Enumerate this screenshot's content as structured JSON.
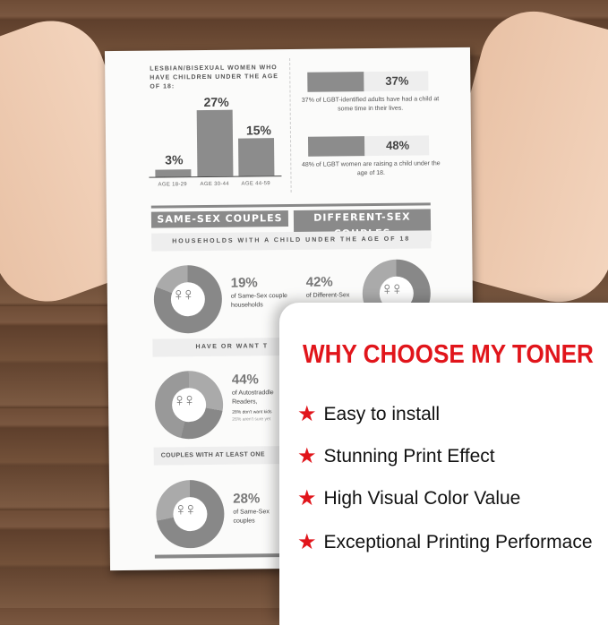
{
  "paper": {
    "bar_title": "LESBIAN/BISEXUAL WOMEN WHO HAVE CHILDREN UNDER THE AGE OF 18:",
    "bars": [
      {
        "label": "AGE 18-29",
        "value": "3%",
        "pct": 3
      },
      {
        "label": "AGE 30-44",
        "value": "27%",
        "pct": 27
      },
      {
        "label": "AGE 44-59",
        "value": "15%",
        "pct": 15
      }
    ],
    "hbars": [
      {
        "value": "37%",
        "pct": 37,
        "caption": "37% of LGBT-identified adults have had a child at some time in their lives."
      },
      {
        "value": "48%",
        "pct": 48,
        "caption": "48% of LGBT women are raising a child under the age of 18."
      }
    ],
    "same_sex": "SAME-SEX COUPLES",
    "different_sex": "DIFFERENT-SEX COUPLES",
    "band1": "HOUSEHOLDS WITH A CHILD UNDER THE AGE OF 18",
    "band2": "HAVE OR WANT T",
    "band3": "COUPLES WITH AT LEAST ONE",
    "stats": [
      {
        "value": "19%",
        "text": "of Same-Sex couple households"
      },
      {
        "value": "42%",
        "text": "of Different-Sex"
      },
      {
        "value": "44%",
        "text": "of Autostraddle Readers,",
        "note1": "28% don't want kids",
        "note2": "26% aren't sure yet"
      },
      {
        "value": "28%",
        "text": "of Same-Sex couples"
      }
    ],
    "symbol": "♀♀"
  },
  "card": {
    "title": "WHY CHOOSE MY TONER",
    "accent": "#e1151b",
    "items": [
      "Easy to install",
      "Stunning Print Effect",
      "High Visual Color Value",
      "Exceptional Printing Performace"
    ]
  }
}
